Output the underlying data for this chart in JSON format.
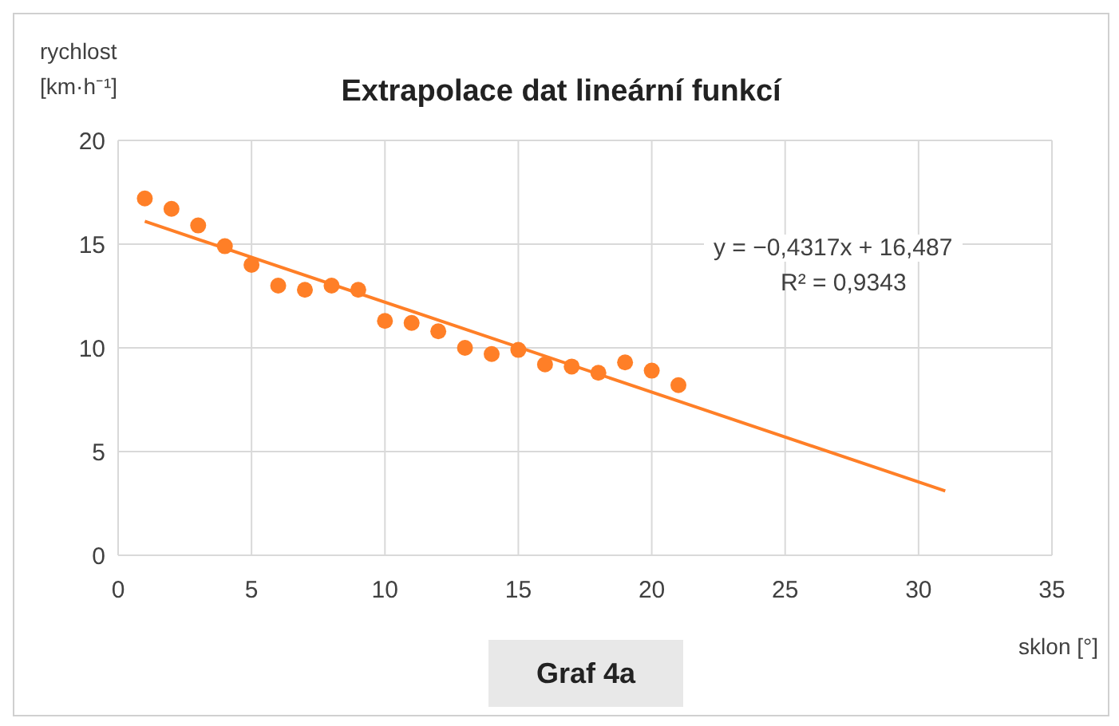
{
  "chart_data": {
    "type": "scatter",
    "title": "Extrapolace dat lineární funkcí",
    "xlabel": "sklon [°]",
    "ylabel": "rychlost [km·h⁻¹]",
    "xlim": [
      0,
      35
    ],
    "xticks": [
      0,
      5,
      10,
      15,
      20,
      25,
      30,
      35
    ],
    "ylim": [
      0,
      20
    ],
    "yticks": [
      0,
      5,
      10,
      15,
      20
    ],
    "grid": true,
    "legend": false,
    "series": [
      {
        "color": "#ff7f27",
        "marker": "circle",
        "x": [
          1,
          2,
          3,
          4,
          5,
          6,
          7,
          8,
          9,
          10,
          11,
          12,
          13,
          14,
          15,
          16,
          17,
          18,
          19,
          20,
          21
        ],
        "values": [
          17.2,
          16.7,
          15.9,
          14.9,
          14.0,
          13.0,
          12.8,
          13.0,
          12.8,
          11.3,
          11.2,
          10.8,
          10.0,
          9.7,
          9.9,
          9.2,
          9.1,
          8.8,
          9.3,
          8.9,
          8.2
        ]
      },
      {
        "type": "line",
        "color": "#ff7f27",
        "marker": "none",
        "x": [
          1,
          31
        ],
        "values": [
          16.1,
          3.1
        ]
      }
    ],
    "annotations": [
      "y = −0,4317x + 16,487",
      "R² = 0,9343",
      "Graf 4a"
    ]
  }
}
